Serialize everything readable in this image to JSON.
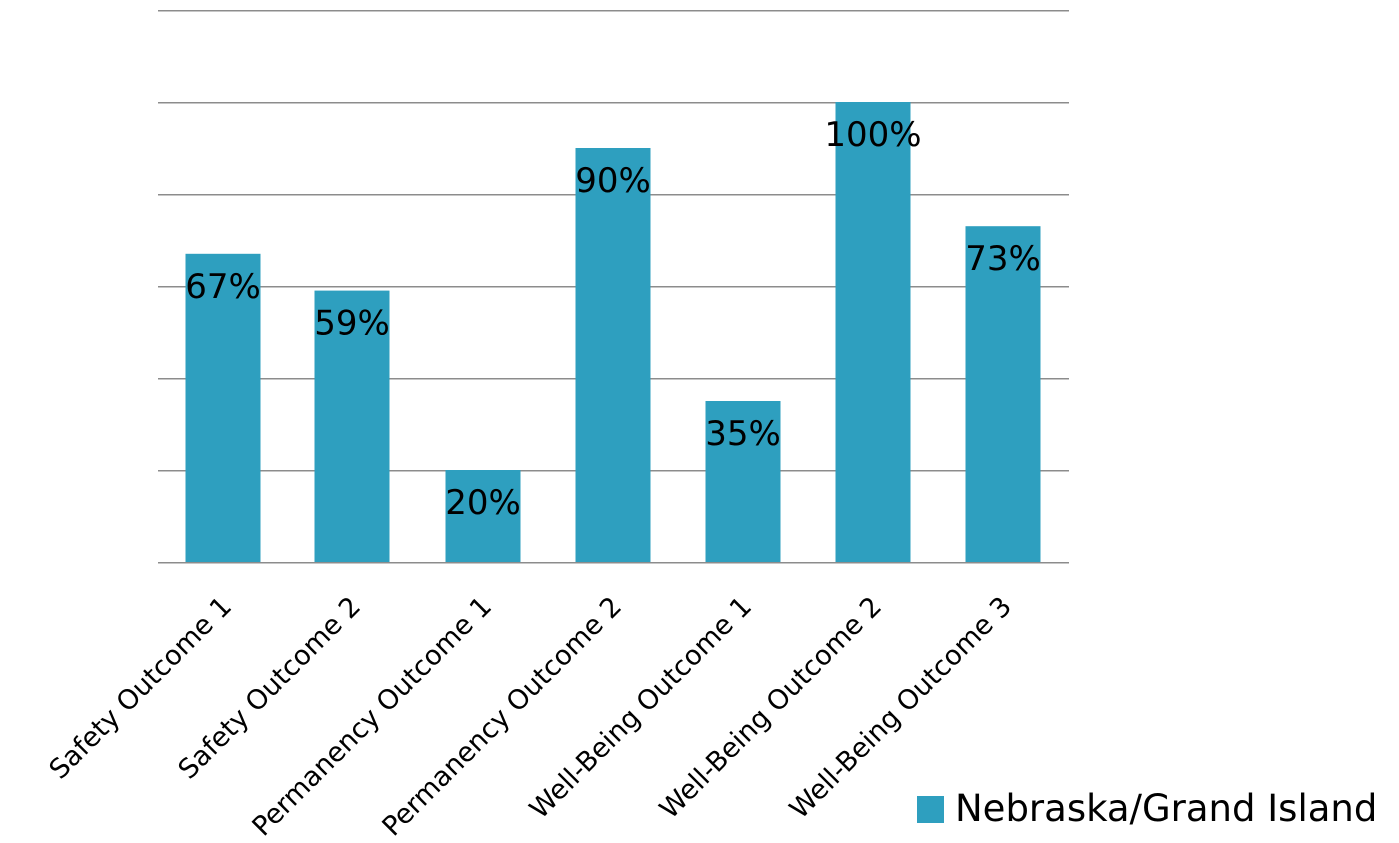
{
  "chart_data": {
    "type": "bar",
    "categories": [
      "Safety Outcome 1",
      "Safety Outcome 2",
      "Permanency Outcome 1",
      "Permanency Outcome 2",
      "Well-Being Outcome 1",
      "Well-Being Outcome 2",
      "Well-Being Outcome 3"
    ],
    "series": [
      {
        "name": "Nebraska/Grand Island",
        "values": [
          67,
          59,
          20,
          90,
          35,
          100,
          73
        ],
        "labels": [
          "67%",
          "59%",
          "20%",
          "90%",
          "35%",
          "100%",
          "73%"
        ],
        "color": "#2e9fbf"
      }
    ],
    "ylim": [
      0,
      120
    ],
    "grid": true,
    "legend_position": "bottom-right"
  }
}
